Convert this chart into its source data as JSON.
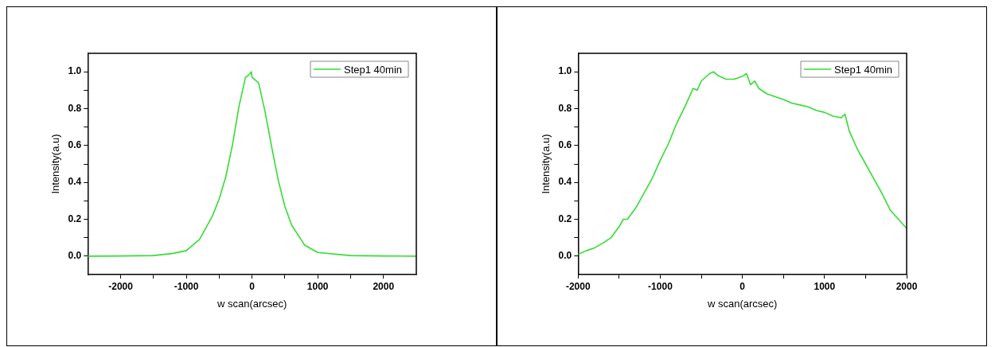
{
  "chart_data": [
    {
      "type": "line",
      "xlabel": "w scan(arcsec)",
      "ylabel": "Intensity(a.u)",
      "xlim": [
        -2500,
        2500
      ],
      "ylim": [
        -0.1,
        1.1
      ],
      "xticks": [
        -2000,
        {
          "value": -1500,
          "label": null
        },
        -1000,
        {
          "value": -500,
          "label": null
        },
        0,
        {
          "value": 500,
          "label": null
        },
        1000,
        {
          "value": 1500,
          "label": null
        },
        2000
      ],
      "yticks": [
        {
          "value": 0,
          "label": "0.0"
        },
        {
          "value": 0.1,
          "label": null
        },
        0.2,
        {
          "value": 0.3,
          "label": null
        },
        0.4,
        {
          "value": 0.5,
          "label": null
        },
        0.6,
        {
          "value": 0.7,
          "label": null
        },
        0.8,
        {
          "value": 0.9,
          "label": null
        },
        {
          "value": 1,
          "label": "1.0"
        }
      ],
      "grid": false,
      "legend": "top right",
      "marker": "none",
      "line_style": "solid",
      "series": [
        {
          "name": "Step1 40min",
          "color": "#33dd33",
          "x": [
            -2500,
            -2000,
            -1500,
            -1200,
            -1000,
            -800,
            -600,
            -500,
            -400,
            -300,
            -200,
            -100,
            -60,
            -30,
            -10,
            0,
            100,
            200,
            300,
            400,
            500,
            600,
            800,
            1000,
            1500,
            2000,
            2500
          ],
          "values": [
            0,
            0.001,
            0.003,
            0.015,
            0.03,
            0.09,
            0.22,
            0.31,
            0.43,
            0.6,
            0.81,
            0.97,
            0.98,
            0.99,
            1.0,
            0.97,
            0.94,
            0.78,
            0.59,
            0.41,
            0.27,
            0.17,
            0.06,
            0.02,
            0.003,
            0.001,
            0
          ]
        }
      ]
    },
    {
      "type": "line",
      "xlabel": "w scan(arcsec)",
      "ylabel": "Intensity(a.u)",
      "xlim": [
        -2000,
        2000
      ],
      "ylim": [
        -0.1,
        1.1
      ],
      "xticks": [
        -2000,
        {
          "value": -1500,
          "label": null
        },
        -1000,
        {
          "value": -500,
          "label": null
        },
        0,
        {
          "value": 500,
          "label": null
        },
        1000,
        {
          "value": 1500,
          "label": null
        },
        2000
      ],
      "yticks": [
        {
          "value": 0,
          "label": "0.0"
        },
        {
          "value": 0.1,
          "label": null
        },
        0.2,
        {
          "value": 0.3,
          "label": null
        },
        0.4,
        {
          "value": 0.5,
          "label": null
        },
        0.6,
        {
          "value": 0.7,
          "label": null
        },
        0.8,
        {
          "value": 0.9,
          "label": null
        },
        {
          "value": 1,
          "label": "1.0"
        }
      ],
      "grid": false,
      "legend": "top right",
      "marker": "none",
      "line_style": "solid",
      "series": [
        {
          "name": "Step1 40min",
          "color": "#33dd33",
          "x": [
            -2000,
            -1900,
            -1800,
            -1700,
            -1600,
            -1500,
            -1450,
            -1400,
            -1300,
            -1200,
            -1100,
            -1000,
            -900,
            -800,
            -700,
            -600,
            -550,
            -500,
            -400,
            -350,
            -300,
            -200,
            -100,
            0,
            50,
            100,
            150,
            200,
            300,
            400,
            500,
            600,
            700,
            800,
            900,
            1000,
            1100,
            1200,
            1250,
            1300,
            1400,
            1500,
            1600,
            1700,
            1800,
            1900,
            2000
          ],
          "values": [
            0.01,
            0.03,
            0.045,
            0.07,
            0.1,
            0.16,
            0.2,
            0.2,
            0.26,
            0.34,
            0.42,
            0.52,
            0.61,
            0.72,
            0.81,
            0.91,
            0.9,
            0.95,
            0.99,
            1.0,
            0.98,
            0.96,
            0.96,
            0.975,
            0.99,
            0.93,
            0.95,
            0.91,
            0.88,
            0.865,
            0.85,
            0.83,
            0.82,
            0.81,
            0.79,
            0.78,
            0.76,
            0.75,
            0.77,
            0.68,
            0.58,
            0.5,
            0.42,
            0.34,
            0.25,
            0.2,
            0.15
          ]
        }
      ]
    }
  ]
}
